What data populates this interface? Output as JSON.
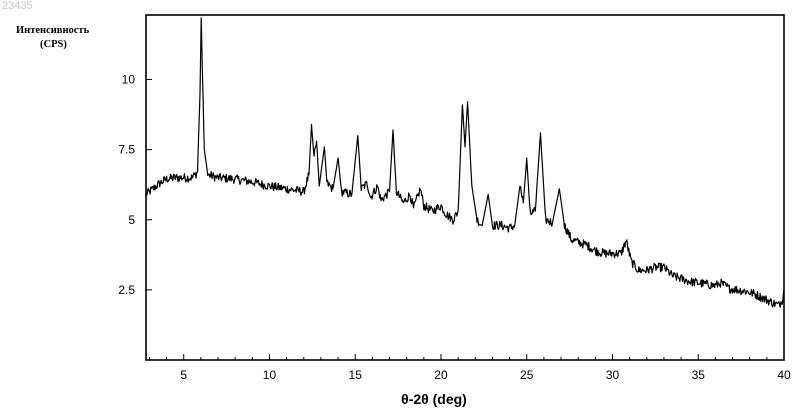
{
  "page_id": "23435",
  "chart_data": {
    "type": "line",
    "ylabel": [
      "Интенсивность",
      "(CPS)"
    ],
    "xlabel": "θ-2θ (deg)",
    "xlim": [
      2.8,
      40
    ],
    "ylim": [
      0,
      12.3
    ],
    "xticks": [
      5,
      10,
      15,
      20,
      25,
      30,
      35,
      40
    ],
    "yticks": [
      2.5,
      5,
      7.5,
      10
    ],
    "ytick_labels": [
      "2.5",
      "5",
      "7.5",
      "10"
    ],
    "xtick_labels": [
      "5",
      "10",
      "15",
      "20",
      "25",
      "30",
      "35",
      "40"
    ],
    "grid": false,
    "series": [
      {
        "values": [
          [
            2.8,
            5.9
          ],
          [
            3.2,
            6.1
          ],
          [
            3.6,
            6.3
          ],
          [
            4.0,
            6.45
          ],
          [
            4.5,
            6.5
          ],
          [
            5.0,
            6.5
          ],
          [
            5.5,
            6.5
          ],
          [
            5.8,
            6.7
          ],
          [
            5.95,
            9.5
          ],
          [
            6.02,
            12.2
          ],
          [
            6.1,
            10.0
          ],
          [
            6.2,
            7.5
          ],
          [
            6.4,
            6.6
          ],
          [
            7.0,
            6.5
          ],
          [
            8.0,
            6.45
          ],
          [
            9.0,
            6.35
          ],
          [
            10.0,
            6.2
          ],
          [
            11.0,
            6.1
          ],
          [
            12.0,
            6.0
          ],
          [
            12.3,
            6.6
          ],
          [
            12.45,
            8.4
          ],
          [
            12.6,
            7.2
          ],
          [
            12.75,
            7.8
          ],
          [
            12.9,
            6.2
          ],
          [
            13.2,
            7.6
          ],
          [
            13.35,
            6.3
          ],
          [
            13.7,
            6.1
          ],
          [
            14.0,
            7.2
          ],
          [
            14.2,
            6.0
          ],
          [
            14.8,
            5.9
          ],
          [
            15.15,
            8.0
          ],
          [
            15.35,
            6.1
          ],
          [
            15.7,
            6.3
          ],
          [
            15.9,
            5.8
          ],
          [
            16.3,
            6.2
          ],
          [
            16.5,
            5.7
          ],
          [
            17.0,
            6.0
          ],
          [
            17.2,
            8.2
          ],
          [
            17.4,
            6.0
          ],
          [
            17.8,
            5.6
          ],
          [
            18.2,
            5.9
          ],
          [
            18.4,
            5.4
          ],
          [
            18.8,
            6.1
          ],
          [
            19.0,
            5.5
          ],
          [
            19.5,
            5.3
          ],
          [
            20.0,
            5.5
          ],
          [
            20.3,
            5.2
          ],
          [
            20.7,
            5.0
          ],
          [
            21.0,
            5.3
          ],
          [
            21.25,
            9.1
          ],
          [
            21.4,
            7.6
          ],
          [
            21.55,
            9.2
          ],
          [
            21.8,
            6.2
          ],
          [
            22.1,
            5.0
          ],
          [
            22.4,
            4.8
          ],
          [
            22.75,
            5.9
          ],
          [
            23.0,
            4.8
          ],
          [
            23.5,
            4.8
          ],
          [
            24.0,
            4.7
          ],
          [
            24.3,
            4.8
          ],
          [
            24.6,
            6.2
          ],
          [
            24.8,
            5.6
          ],
          [
            25.0,
            7.2
          ],
          [
            25.2,
            5.2
          ],
          [
            25.5,
            5.3
          ],
          [
            25.8,
            8.1
          ],
          [
            26.1,
            5.0
          ],
          [
            26.5,
            4.9
          ],
          [
            26.9,
            6.1
          ],
          [
            27.2,
            4.8
          ],
          [
            27.6,
            4.3
          ],
          [
            28.0,
            4.2
          ],
          [
            28.5,
            4.1
          ],
          [
            29.0,
            3.9
          ],
          [
            29.5,
            3.8
          ],
          [
            30.0,
            3.8
          ],
          [
            30.5,
            3.8
          ],
          [
            30.8,
            4.25
          ],
          [
            31.1,
            3.5
          ],
          [
            31.5,
            3.2
          ],
          [
            32.0,
            3.2
          ],
          [
            32.5,
            3.3
          ],
          [
            33.0,
            3.3
          ],
          [
            33.5,
            3.0
          ],
          [
            34.0,
            2.9
          ],
          [
            34.5,
            2.8
          ],
          [
            35.0,
            2.75
          ],
          [
            35.5,
            2.7
          ],
          [
            36.0,
            2.65
          ],
          [
            36.3,
            2.75
          ],
          [
            36.8,
            2.55
          ],
          [
            37.3,
            2.5
          ],
          [
            37.8,
            2.45
          ],
          [
            38.3,
            2.35
          ],
          [
            38.8,
            2.2
          ],
          [
            39.3,
            2.05
          ],
          [
            39.7,
            1.95
          ],
          [
            39.9,
            2.15
          ],
          [
            40.0,
            2.5
          ]
        ]
      }
    ]
  }
}
